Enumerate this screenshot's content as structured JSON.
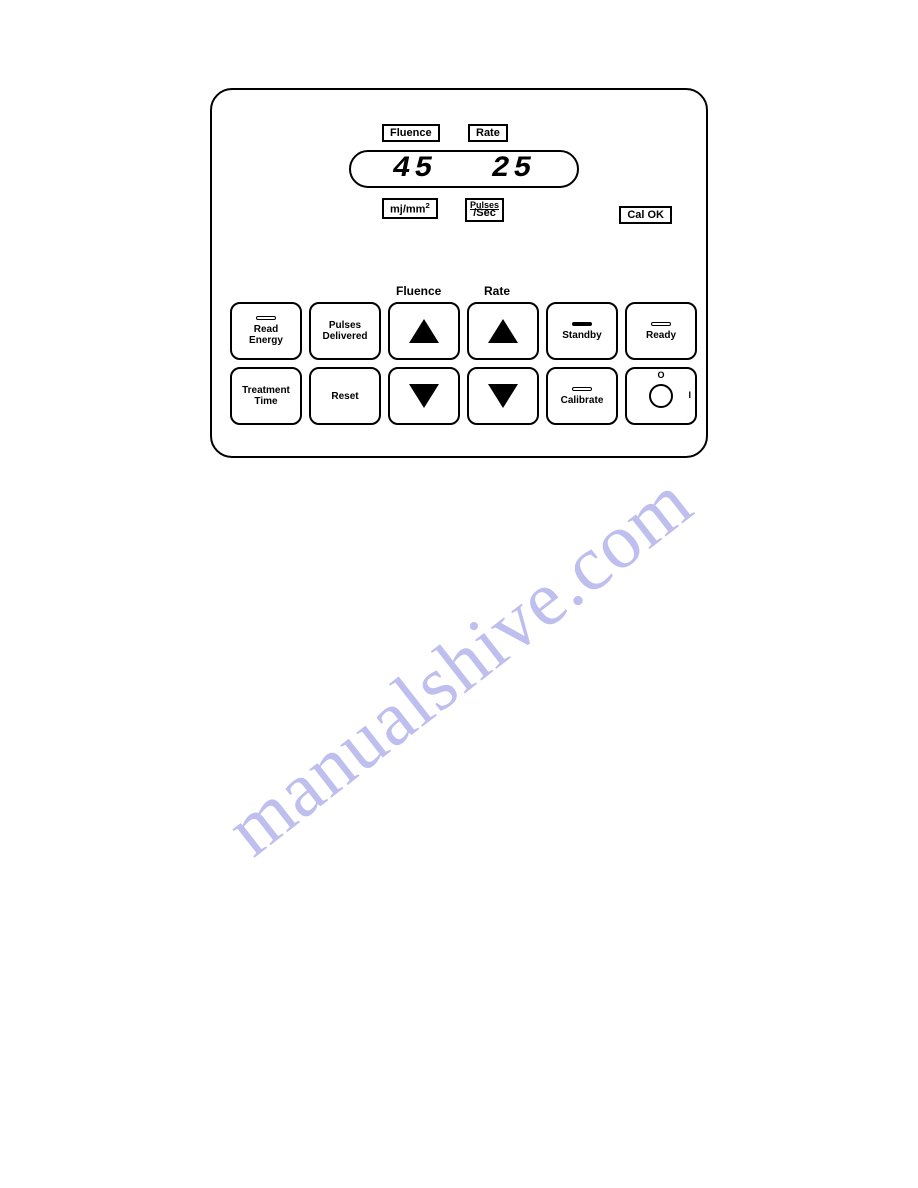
{
  "watermark": "manualshive.com",
  "panel": {
    "top_labels": {
      "fluence": "Fluence",
      "rate": "Rate"
    },
    "display": {
      "fluence_value": "45",
      "rate_value": "25"
    },
    "units": {
      "fluence_html": "mj/mm",
      "fluence_sup": "2",
      "rate_top": "Pulses",
      "rate_bottom": "/Sec"
    },
    "cal_ok": "Cal OK",
    "column_headers": {
      "fluence": "Fluence",
      "rate": "Rate"
    },
    "buttons": {
      "read_energy": "Read\nEnergy",
      "pulses_delivered": "Pulses\nDelivered",
      "standby": "Standby",
      "ready": "Ready",
      "treatment_time": "Treatment\nTime",
      "reset": "Reset",
      "calibrate": "Calibrate"
    },
    "key_switch": {
      "off": "O",
      "on": "I"
    }
  },
  "colors": {
    "line": "#000000",
    "bg": "#ffffff",
    "watermark": "rgba(110,110,220,0.45)"
  }
}
